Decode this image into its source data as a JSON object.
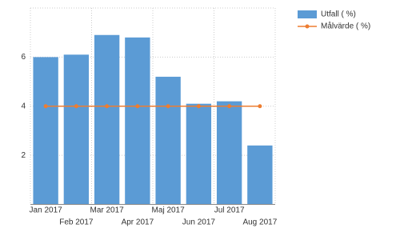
{
  "chart_data": {
    "type": "bar",
    "categories": [
      "Jan 2017",
      "Feb 2017",
      "Mar 2017",
      "Apr 2017",
      "Maj 2017",
      "Jun 2017",
      "Jul 2017",
      "Aug 2017"
    ],
    "series": [
      {
        "name": "Utfall ( %)",
        "type": "bar",
        "color": "#5b9bd5",
        "values": [
          6.0,
          6.1,
          6.9,
          6.8,
          5.2,
          4.1,
          4.2,
          2.4
        ]
      },
      {
        "name": "Målvärde ( %)",
        "type": "line",
        "color": "#ed7d31",
        "values": [
          4,
          4,
          4,
          4,
          4,
          4,
          4,
          4
        ]
      }
    ],
    "ylim": [
      0,
      8
    ],
    "yticks": [
      2,
      4,
      6
    ],
    "grid": true,
    "legend": "right"
  }
}
